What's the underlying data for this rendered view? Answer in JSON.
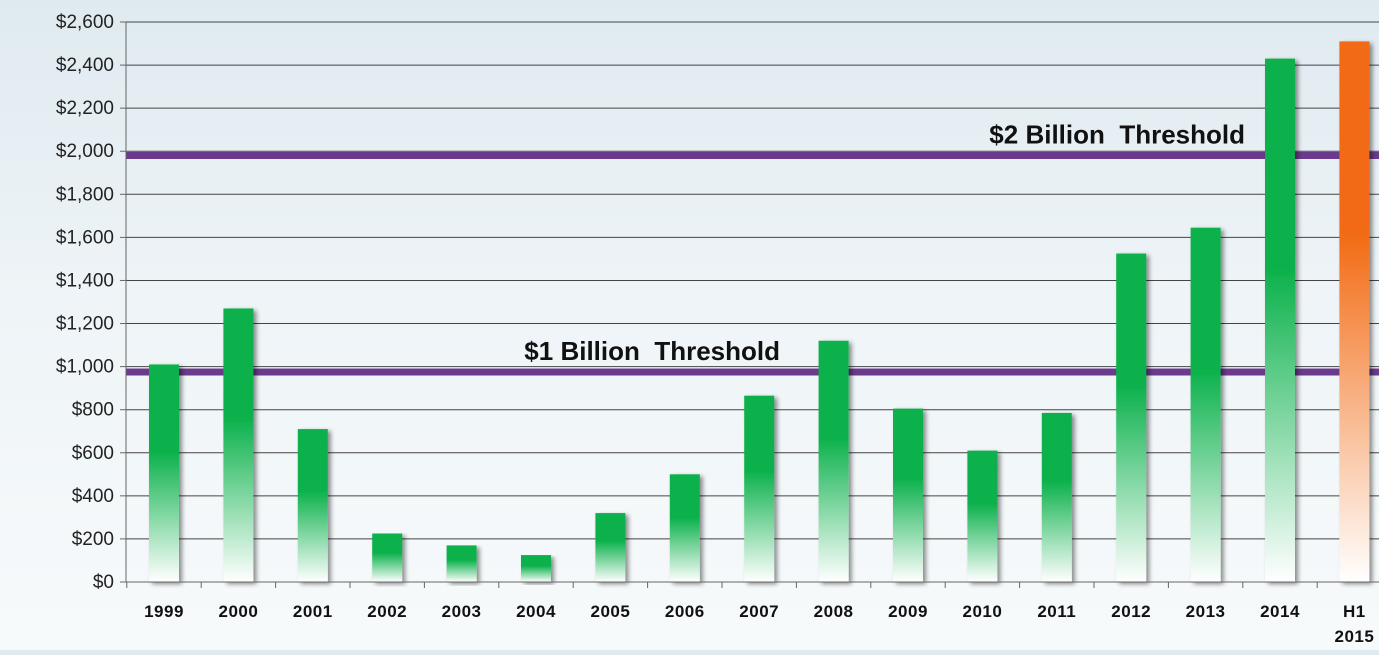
{
  "chart_data": {
    "type": "bar",
    "categories": [
      "1999",
      "2000",
      "2001",
      "2002",
      "2003",
      "2004",
      "2005",
      "2006",
      "2007",
      "2008",
      "2009",
      "2010",
      "2011",
      "2012",
      "2013",
      "2014",
      "H1 2015"
    ],
    "category_lines": [
      [
        "1999"
      ],
      [
        "2000"
      ],
      [
        "2001"
      ],
      [
        "2002"
      ],
      [
        "2003"
      ],
      [
        "2004"
      ],
      [
        "2005"
      ],
      [
        "2006"
      ],
      [
        "2007"
      ],
      [
        "2008"
      ],
      [
        "2009"
      ],
      [
        "2010"
      ],
      [
        "2011"
      ],
      [
        "2012"
      ],
      [
        "2013"
      ],
      [
        "2014"
      ],
      [
        "H1",
        "2015"
      ]
    ],
    "values": [
      1010,
      1270,
      710,
      225,
      170,
      125,
      320,
      500,
      865,
      1120,
      805,
      610,
      785,
      1525,
      1645,
      2430,
      2510
    ],
    "ylim": [
      0,
      2600
    ],
    "yticks": [
      0,
      200,
      400,
      600,
      800,
      1000,
      1200,
      1400,
      1600,
      1800,
      2000,
      2200,
      2400,
      2600
    ],
    "ytick_labels": [
      "$0",
      "$200",
      "$400",
      "$600",
      "$800",
      "$1,000",
      "$1,200",
      "$1,400",
      "$1,600",
      "$1,800",
      "$2,000",
      "$2,200",
      "$2,400",
      "$2,600"
    ],
    "grid": true,
    "thresholds": [
      {
        "value": 975,
        "label": "$1 Billion  Threshold"
      },
      {
        "value": 1980,
        "label": "$2 Billion  Threshold"
      }
    ],
    "colors": {
      "bar_top": "#0bb14b",
      "bar_bottom": "#ffffff",
      "highlight_top": "#f26a12",
      "highlight_bottom": "#ffffff",
      "threshold_line": "#6b3a8c",
      "grid": "#444444"
    },
    "highlight_index": 16
  }
}
